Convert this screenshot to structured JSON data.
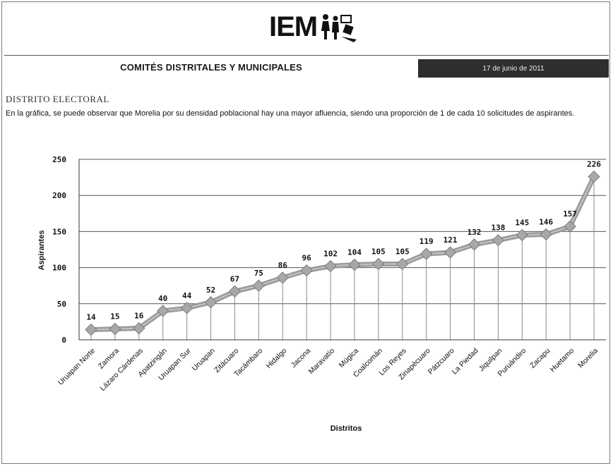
{
  "header": {
    "logo_text": "IEM",
    "section_title": "COMITÉS DISTRITALES Y MUNICIPALES",
    "date": "17 de junio de 2011"
  },
  "content": {
    "heading": "DISTRITO ELECTORAL",
    "description": "En la gráfica, se puede observar que Morelia por su densidad poblacional hay una mayor afluencia, siendo una proporción de 1 de cada 10 solicitudes de aspirantes."
  },
  "colors": {
    "series": "#9a9a9a",
    "marker": "#a8a8a8",
    "grid": "#555555",
    "date_box": "#2e2e2e"
  },
  "chart_data": {
    "type": "line",
    "xlabel": "Distritos",
    "ylabel": "Aspirantes",
    "ylim": [
      0,
      250
    ],
    "yticks": [
      0,
      50,
      100,
      150,
      200,
      250
    ],
    "grid": true,
    "categories": [
      "Uruapan Norte",
      "Zamora",
      "Lázaro Cárdenas",
      "Apatzingán",
      "Uruapan Sur",
      "Uruapan",
      "Zitácuaro",
      "Tacámbaro",
      "Hidalgo",
      "Jacona",
      "Maravatío",
      "Múgica",
      "Coalcomán",
      "Los Reyes",
      "Zinapécuaro",
      "Pátzcuaro",
      "La Piedad",
      "Jiquilpan",
      "Puruándiro",
      "Zacapu",
      "Huetamo",
      "Morelia"
    ],
    "values": [
      14,
      15,
      16,
      40,
      44,
      52,
      67,
      75,
      86,
      96,
      102,
      104,
      105,
      105,
      119,
      121,
      132,
      138,
      145,
      146,
      157,
      226
    ]
  }
}
